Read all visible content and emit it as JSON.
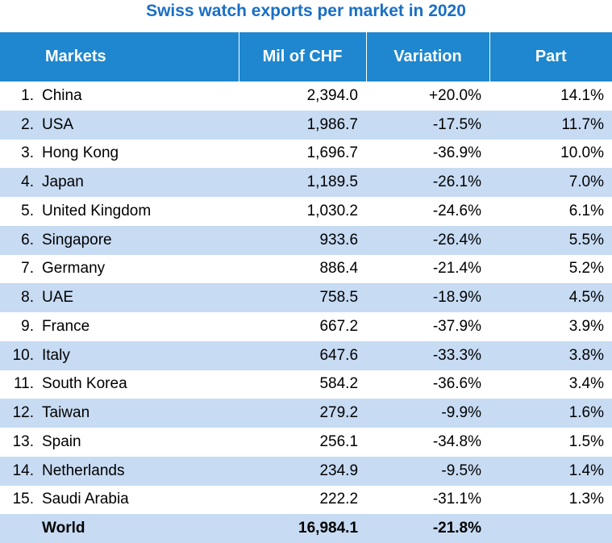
{
  "title": "Swiss watch exports per market in 2020",
  "header": {
    "markets": "Markets",
    "mil": "Mil of CHF",
    "variation": "Variation",
    "part": "Part"
  },
  "rows": [
    {
      "rank": "1.",
      "market": "China",
      "mil": "2,394.0",
      "variation": "+20.0%",
      "part": "14.1%"
    },
    {
      "rank": "2.",
      "market": "USA",
      "mil": "1,986.7",
      "variation": "-17.5%",
      "part": "11.7%"
    },
    {
      "rank": "3.",
      "market": "Hong Kong",
      "mil": "1,696.7",
      "variation": "-36.9%",
      "part": "10.0%"
    },
    {
      "rank": "4.",
      "market": "Japan",
      "mil": "1,189.5",
      "variation": "-26.1%",
      "part": "7.0%"
    },
    {
      "rank": "5.",
      "market": "United Kingdom",
      "mil": "1,030.2",
      "variation": "-24.6%",
      "part": "6.1%"
    },
    {
      "rank": "6.",
      "market": "Singapore",
      "mil": "933.6",
      "variation": "-26.4%",
      "part": "5.5%"
    },
    {
      "rank": "7.",
      "market": "Germany",
      "mil": "886.4",
      "variation": "-21.4%",
      "part": "5.2%"
    },
    {
      "rank": "8.",
      "market": "UAE",
      "mil": "758.5",
      "variation": "-18.9%",
      "part": "4.5%"
    },
    {
      "rank": "9.",
      "market": "France",
      "mil": "667.2",
      "variation": "-37.9%",
      "part": "3.9%"
    },
    {
      "rank": "10.",
      "market": "Italy",
      "mil": "647.6",
      "variation": "-33.3%",
      "part": "3.8%"
    },
    {
      "rank": "11.",
      "market": "South Korea",
      "mil": "584.2",
      "variation": "-36.6%",
      "part": "3.4%"
    },
    {
      "rank": "12.",
      "market": "Taiwan",
      "mil": "279.2",
      "variation": "-9.9%",
      "part": "1.6%"
    },
    {
      "rank": "13.",
      "market": "Spain",
      "mil": "256.1",
      "variation": "-34.8%",
      "part": "1.5%"
    },
    {
      "rank": "14.",
      "market": "Netherlands",
      "mil": "234.9",
      "variation": "-9.5%",
      "part": "1.4%"
    },
    {
      "rank": "15.",
      "market": "Saudi Arabia",
      "mil": "222.2",
      "variation": "-31.1%",
      "part": "1.3%"
    }
  ],
  "total": {
    "market": "World",
    "mil": "16,984.1",
    "variation": "-21.8%",
    "part": ""
  },
  "colors": {
    "title": "#1a6fc4",
    "header_bg": "#1e87cf",
    "stripe": "#c7dbf3"
  },
  "chart_data": {
    "type": "table",
    "title": "Swiss watch exports per market in 2020",
    "columns": [
      "Markets",
      "Mil of CHF",
      "Variation",
      "Part"
    ],
    "rows": [
      [
        "China",
        2394.0,
        20.0,
        14.1
      ],
      [
        "USA",
        1986.7,
        -17.5,
        11.7
      ],
      [
        "Hong Kong",
        1696.7,
        -36.9,
        10.0
      ],
      [
        "Japan",
        1189.5,
        -26.1,
        7.0
      ],
      [
        "United Kingdom",
        1030.2,
        -24.6,
        6.1
      ],
      [
        "Singapore",
        933.6,
        -26.4,
        5.5
      ],
      [
        "Germany",
        886.4,
        -21.4,
        5.2
      ],
      [
        "UAE",
        758.5,
        -18.9,
        4.5
      ],
      [
        "France",
        667.2,
        -37.9,
        3.9
      ],
      [
        "Italy",
        647.6,
        -33.3,
        3.8
      ],
      [
        "South Korea",
        584.2,
        -36.6,
        3.4
      ],
      [
        "Taiwan",
        279.2,
        -9.9,
        1.6
      ],
      [
        "Spain",
        256.1,
        -34.8,
        1.5
      ],
      [
        "Netherlands",
        234.9,
        -9.5,
        1.4
      ],
      [
        "Saudi Arabia",
        222.2,
        -31.1,
        1.3
      ]
    ],
    "total": [
      "World",
      16984.1,
      -21.8,
      null
    ]
  }
}
